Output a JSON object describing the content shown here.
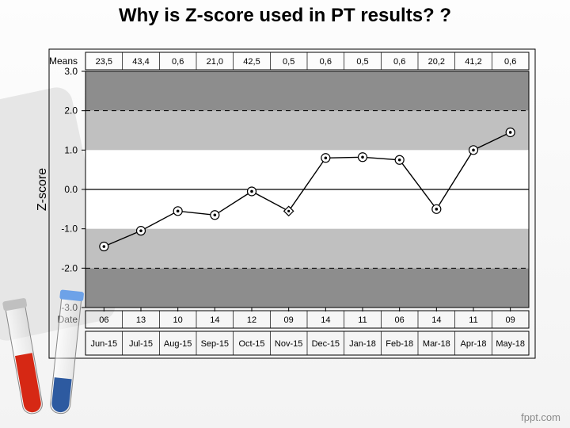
{
  "title": "Why is Z-score used in PT results? ?",
  "footer": "fppt.com",
  "chart": {
    "type": "line",
    "y_axis_label": "Z-score",
    "y_axis_label_fontsize": 16,
    "means_label": "Means",
    "date_label": "Date",
    "ylim": [
      -3.0,
      3.0
    ],
    "yticks": [
      -3.0,
      -2.0,
      -1.0,
      0.0,
      1.0,
      2.0,
      3.0
    ],
    "ytick_labels": [
      "-3.0",
      "-2.0",
      "-1.0",
      "0.0",
      "1.0",
      "2.0",
      "3.0"
    ],
    "ref_lines_dashed": [
      -2.0,
      2.0
    ],
    "center_line": 0.0,
    "band_ranges": [
      [
        -2.0,
        -1.0
      ],
      [
        1.0,
        2.0
      ]
    ],
    "band_color": "#c0c0c0",
    "outer_color": "#8d8d8d",
    "plot_bg": "#ffffff",
    "axis_color": "#000000",
    "line_color": "#000000",
    "marker_outer": "#000000",
    "marker_fill": "#ffffff",
    "marker_dot": "#000000",
    "marker_radius": 5.5,
    "diamond_at_index": 5,
    "label_fontsize": 12,
    "tick_fontsize": 12,
    "points": [
      {
        "xlabel": "Jun-15",
        "date": "06",
        "mean": "23,5",
        "z": -1.45
      },
      {
        "xlabel": "Jul-15",
        "date": "13",
        "mean": "43,4",
        "z": -1.05
      },
      {
        "xlabel": "Aug-15",
        "date": "10",
        "mean": "0,6",
        "z": -0.55
      },
      {
        "xlabel": "Sep-15",
        "date": "14",
        "mean": "21,0",
        "z": -0.65
      },
      {
        "xlabel": "Oct-15",
        "date": "12",
        "mean": "42,5",
        "z": -0.05
      },
      {
        "xlabel": "Nov-15",
        "date": "09",
        "mean": "0,5",
        "z": -0.55
      },
      {
        "xlabel": "Dec-15",
        "date": "14",
        "mean": "0,6",
        "z": 0.8
      },
      {
        "xlabel": "Jan-18",
        "date": "11",
        "mean": "0,5",
        "z": 0.82
      },
      {
        "xlabel": "Feb-18",
        "date": "06",
        "mean": "0,6",
        "z": 0.75
      },
      {
        "xlabel": "Mar-18",
        "date": "14",
        "mean": "20,2",
        "z": -0.5
      },
      {
        "xlabel": "Apr-18",
        "date": "11",
        "mean": "41,2",
        "z": 1.0
      },
      {
        "xlabel": "May-18",
        "date": "09",
        "mean": "0,6",
        "z": 1.45
      }
    ]
  },
  "tubes": {
    "red": {
      "fill": "#d62814",
      "cap": "#c0c0c0",
      "height_pct": 55
    },
    "blue": {
      "fill": "#2d5aa0",
      "cap": "#6da2e8",
      "height_pct": 30
    }
  }
}
